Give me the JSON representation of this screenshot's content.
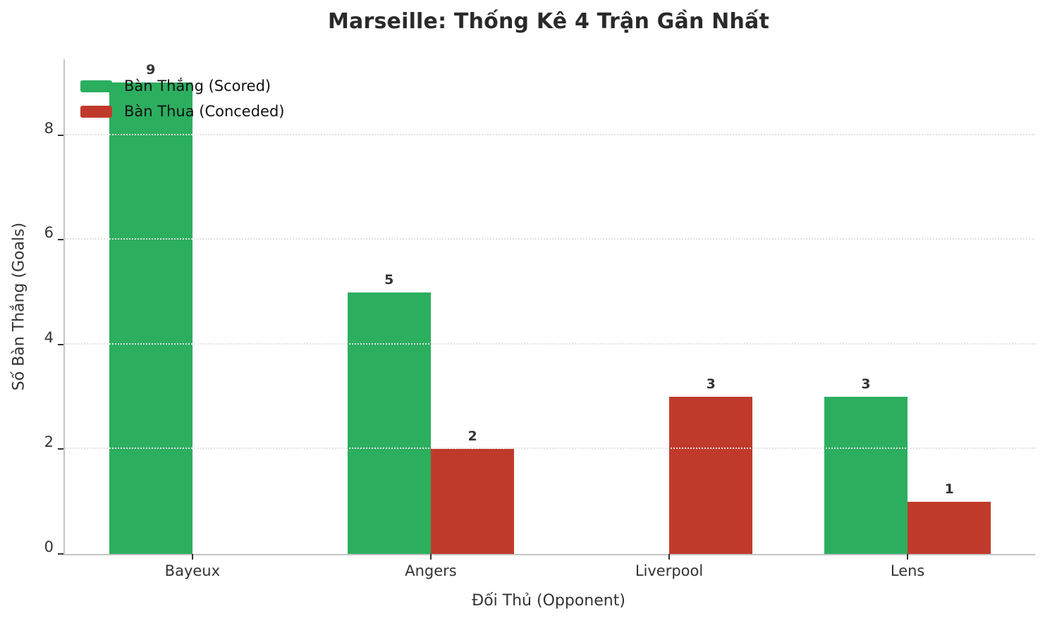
{
  "chart_data": {
    "type": "bar",
    "title": "Marseille: Thống Kê 4 Trận Gần Nhất",
    "xlabel": "Đối Thủ (Opponent)",
    "ylabel": "Số Bàn Thắng (Goals)",
    "categories": [
      "Bayeux",
      "Angers",
      "Liverpool",
      "Lens"
    ],
    "series": [
      {
        "name": "Bàn Thắng (Scored)",
        "color": "#2cae5f",
        "values": [
          9,
          5,
          0,
          3
        ]
      },
      {
        "name": "Bàn Thua (Conceded)",
        "color": "#c03a2b",
        "values": [
          0,
          2,
          3,
          1
        ]
      }
    ],
    "yticks": [
      0,
      2,
      4,
      6,
      8
    ],
    "ylim": [
      0,
      9.45
    ],
    "xlim": [
      -0.535,
      3.535
    ],
    "bar_width_units": 0.35,
    "grid": "horizontal-dotted",
    "legend_position": "upper-left",
    "bar_value_labels_shown": true,
    "hide_zero_bars": true
  },
  "colors": {
    "background": "#ffffff",
    "scored_green": "#2cae5f",
    "conceded_red": "#c03a2b",
    "text": "#333333",
    "title_text": "#2a2a2a",
    "spine": "#c4c4c4",
    "gridline": "#e2e2e2"
  }
}
